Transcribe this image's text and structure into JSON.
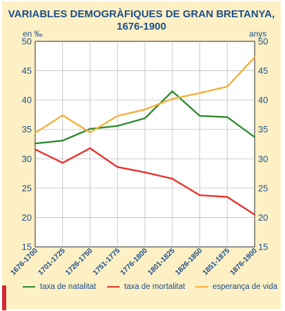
{
  "chart_data": {
    "type": "line",
    "title_line1": "VARIABLES DEMOGRÀFIQUES DE GRAN BRETANYA,",
    "title_line2": "1676-1900",
    "ylabel_left": "en ‰",
    "ylabel_right": "anys",
    "ylim": [
      15,
      50
    ],
    "yticks": [
      15,
      20,
      25,
      30,
      35,
      40,
      45,
      50
    ],
    "categories": [
      "1676-1700",
      "1701-1725",
      "1726-1750",
      "1751-1775",
      "1776-1800",
      "1801-1825",
      "1826-1850",
      "1851-1875",
      "1876-1900"
    ],
    "series": [
      {
        "name": "taxa de natalitat",
        "color": "#2e8b2e",
        "values": [
          32.6,
          33.1,
          35.1,
          35.6,
          36.9,
          41.5,
          37.3,
          37.1,
          33.7
        ]
      },
      {
        "name": "taxa de mortalitat",
        "color": "#e8312a",
        "values": [
          31.6,
          29.3,
          31.8,
          28.6,
          27.7,
          26.6,
          23.8,
          23.5,
          20.5
        ]
      },
      {
        "name": "esperança de vida",
        "color": "#f3b03a",
        "values": [
          34.4,
          37.4,
          34.5,
          37.3,
          38.4,
          40.2,
          41.2,
          42.3,
          47.3
        ]
      }
    ],
    "grid": true,
    "legend_position": "bottom"
  }
}
